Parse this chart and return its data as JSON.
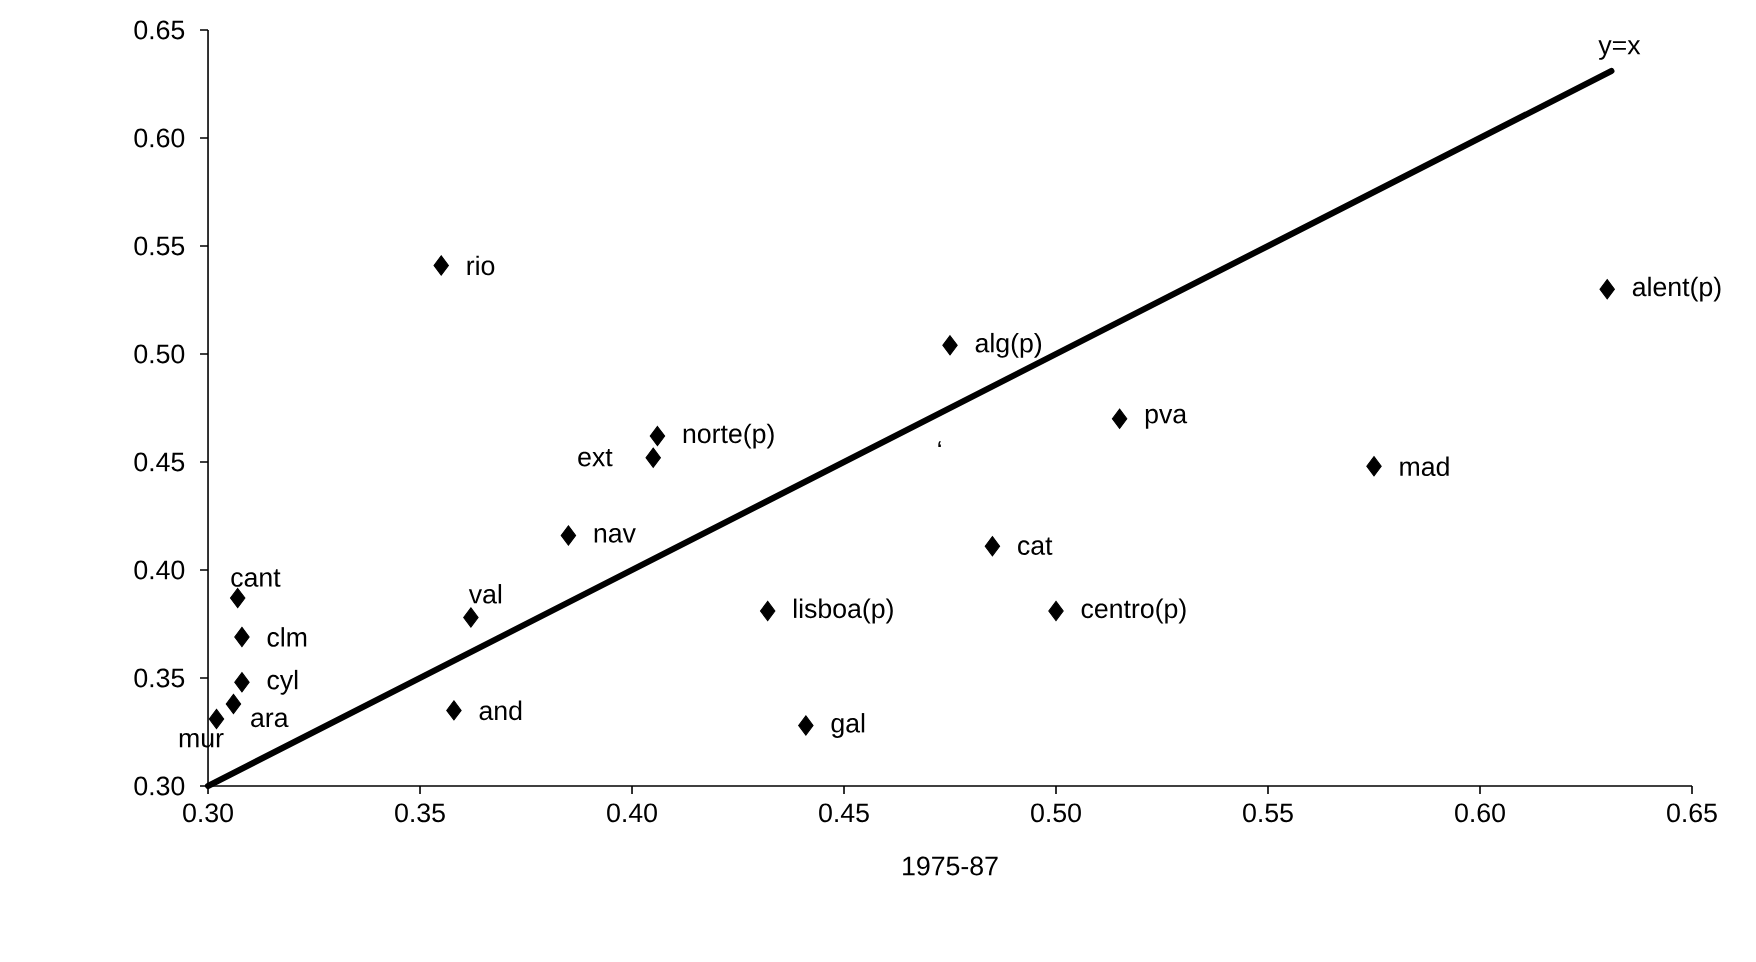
{
  "chart_data": {
    "type": "scatter",
    "xlabel": "1975-87",
    "xlim": [
      0.3,
      0.65
    ],
    "ylim": [
      0.3,
      0.65
    ],
    "xticks": [
      {
        "value": 0.3,
        "label": "0.30"
      },
      {
        "value": 0.35,
        "label": "0.35"
      },
      {
        "value": 0.4,
        "label": "0.40"
      },
      {
        "value": 0.45,
        "label": "0.45"
      },
      {
        "value": 0.5,
        "label": "0.50"
      },
      {
        "value": 0.55,
        "label": "0.55"
      },
      {
        "value": 0.6,
        "label": "0.60"
      },
      {
        "value": 0.65,
        "label": "0.65"
      }
    ],
    "yticks": [
      {
        "value": 0.3,
        "label": "0.30"
      },
      {
        "value": 0.35,
        "label": "0.35"
      },
      {
        "value": 0.4,
        "label": "0.40"
      },
      {
        "value": 0.45,
        "label": "0.45"
      },
      {
        "value": 0.5,
        "label": "0.50"
      },
      {
        "value": 0.55,
        "label": "0.55"
      },
      {
        "value": 0.6,
        "label": "0.60"
      },
      {
        "value": 0.65,
        "label": "0.65"
      }
    ],
    "marker": "diamond",
    "series": [
      {
        "color": "#000000",
        "x": [
          0.355,
          0.63,
          0.475,
          0.515,
          0.406,
          0.405,
          0.575,
          0.385,
          0.485,
          0.307,
          0.432,
          0.5,
          0.308,
          0.362,
          0.308,
          0.306,
          0.358,
          0.302,
          0.441
        ],
        "values": [
          0.541,
          0.53,
          0.504,
          0.47,
          0.462,
          0.452,
          0.448,
          0.416,
          0.411,
          0.387,
          0.381,
          0.381,
          0.369,
          0.378,
          0.348,
          0.338,
          0.335,
          0.331,
          0.328
        ]
      },
      {
        "type": "line",
        "color": "#000000",
        "marker": "none",
        "x": [
          0.3,
          0.631
        ],
        "values": [
          0.3,
          0.631
        ]
      }
    ],
    "annotations": [
      {
        "text": "y=x",
        "x": 0.631,
        "y": 0.631
      },
      {
        "text": "rio",
        "x": 0.355,
        "y": 0.541
      },
      {
        "text": "alent(p)",
        "x": 0.63,
        "y": 0.53
      },
      {
        "text": "alg(p)",
        "x": 0.475,
        "y": 0.504
      },
      {
        "text": "pva",
        "x": 0.515,
        "y": 0.47
      },
      {
        "text": "norte(p)",
        "x": 0.406,
        "y": 0.462
      },
      {
        "text": "ext",
        "x": 0.405,
        "y": 0.452
      },
      {
        "text": "mad",
        "x": 0.575,
        "y": 0.448
      },
      {
        "text": "nav",
        "x": 0.385,
        "y": 0.416
      },
      {
        "text": "cat",
        "x": 0.485,
        "y": 0.411
      },
      {
        "text": "cant",
        "x": 0.307,
        "y": 0.387
      },
      {
        "text": "lisboa(p)",
        "x": 0.432,
        "y": 0.381
      },
      {
        "text": "centro(p)",
        "x": 0.5,
        "y": 0.381
      },
      {
        "text": "clm",
        "x": 0.308,
        "y": 0.369
      },
      {
        "text": "val",
        "x": 0.362,
        "y": 0.378
      },
      {
        "text": "cyl",
        "x": 0.308,
        "y": 0.348
      },
      {
        "text": "ara",
        "x": 0.306,
        "y": 0.338
      },
      {
        "text": "and",
        "x": 0.358,
        "y": 0.335
      },
      {
        "text": "mur",
        "x": 0.302,
        "y": 0.331
      },
      {
        "text": "gal",
        "x": 0.441,
        "y": 0.328
      },
      "‘"
    ]
  }
}
